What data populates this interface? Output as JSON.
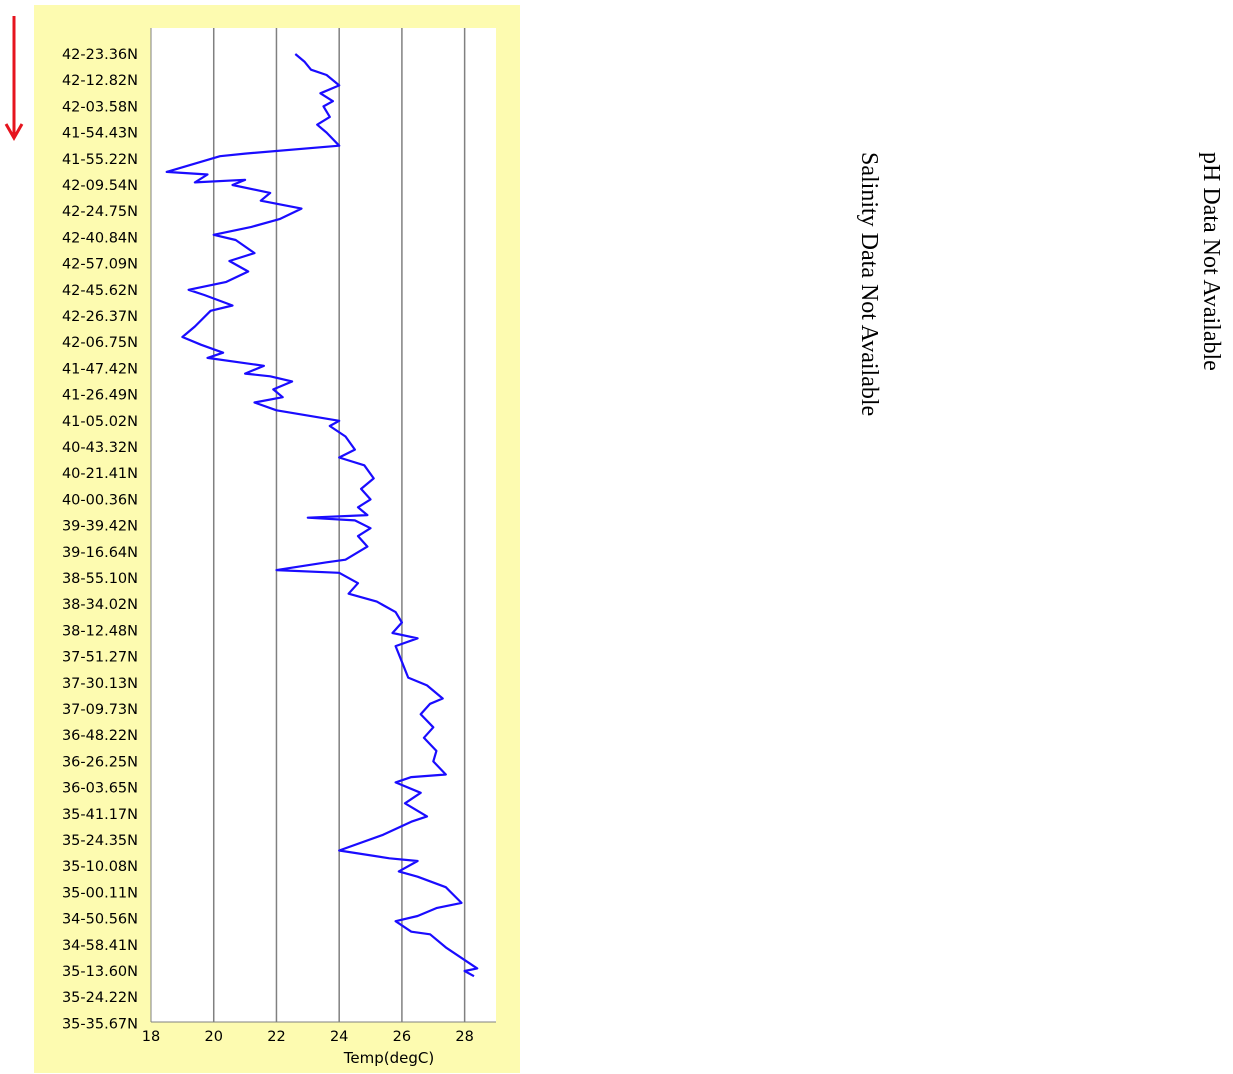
{
  "chart_data": {
    "type": "line",
    "xlabel": "Temp(degC)",
    "xlim": [
      18,
      29
    ],
    "xticks": [
      18,
      20,
      22,
      24,
      26,
      28
    ],
    "grid": "vertical lines at x ticks",
    "y_tick_labels": [
      "42-23.36N",
      "42-12.82N",
      "42-03.58N",
      "41-54.43N",
      "41-55.22N",
      "42-09.54N",
      "42-24.75N",
      "42-40.84N",
      "42-57.09N",
      "42-45.62N",
      "42-26.37N",
      "42-06.75N",
      "41-47.42N",
      "41-26.49N",
      "41-05.02N",
      "40-43.32N",
      "40-21.41N",
      "40-00.36N",
      "39-39.42N",
      "39-16.64N",
      "38-55.10N",
      "38-34.02N",
      "38-12.48N",
      "37-51.27N",
      "37-30.13N",
      "37-09.73N",
      "36-48.22N",
      "36-26.25N",
      "36-03.65N",
      "35-41.17N",
      "35-24.35N",
      "35-10.08N",
      "35-00.11N",
      "34-50.56N",
      "34-58.41N",
      "35-13.60N",
      "35-24.22N",
      "35-35.67N"
    ],
    "series": [
      {
        "color": "#1a0cff",
        "points": [
          [
            22.6,
            0.0
          ],
          [
            22.9,
            0.3
          ],
          [
            23.1,
            0.6
          ],
          [
            23.6,
            0.8
          ],
          [
            24.0,
            1.2
          ],
          [
            23.4,
            1.5
          ],
          [
            23.8,
            1.8
          ],
          [
            23.5,
            2.0
          ],
          [
            23.7,
            2.4
          ],
          [
            23.3,
            2.7
          ],
          [
            23.6,
            3.0
          ],
          [
            24.0,
            3.5
          ],
          [
            21.0,
            3.8
          ],
          [
            20.2,
            3.9
          ],
          [
            18.5,
            4.5
          ],
          [
            19.8,
            4.6
          ],
          [
            19.4,
            4.9
          ],
          [
            21.0,
            4.8
          ],
          [
            20.6,
            5.0
          ],
          [
            21.8,
            5.3
          ],
          [
            21.5,
            5.6
          ],
          [
            22.8,
            5.9
          ],
          [
            22.1,
            6.3
          ],
          [
            21.2,
            6.6
          ],
          [
            20.0,
            6.9
          ],
          [
            20.7,
            7.1
          ],
          [
            21.3,
            7.6
          ],
          [
            20.5,
            7.9
          ],
          [
            21.1,
            8.3
          ],
          [
            20.4,
            8.7
          ],
          [
            19.2,
            9.0
          ],
          [
            19.7,
            9.2
          ],
          [
            20.6,
            9.6
          ],
          [
            19.9,
            9.8
          ],
          [
            19.4,
            10.4
          ],
          [
            19.0,
            10.8
          ],
          [
            19.6,
            11.1
          ],
          [
            20.3,
            11.4
          ],
          [
            19.8,
            11.6
          ],
          [
            21.6,
            11.9
          ],
          [
            21.0,
            12.2
          ],
          [
            21.8,
            12.3
          ],
          [
            22.5,
            12.5
          ],
          [
            21.9,
            12.8
          ],
          [
            22.2,
            13.1
          ],
          [
            21.3,
            13.3
          ],
          [
            22.0,
            13.6
          ],
          [
            24.0,
            14.0
          ],
          [
            23.7,
            14.2
          ],
          [
            24.2,
            14.6
          ],
          [
            24.5,
            15.1
          ],
          [
            24.0,
            15.4
          ],
          [
            24.8,
            15.7
          ],
          [
            25.1,
            16.2
          ],
          [
            24.7,
            16.6
          ],
          [
            25.0,
            17.0
          ],
          [
            24.6,
            17.3
          ],
          [
            24.9,
            17.6
          ],
          [
            23.0,
            17.7
          ],
          [
            24.5,
            17.8
          ],
          [
            25.0,
            18.1
          ],
          [
            24.6,
            18.4
          ],
          [
            24.9,
            18.8
          ],
          [
            24.2,
            19.3
          ],
          [
            23.6,
            19.4
          ],
          [
            22.0,
            19.7
          ],
          [
            24.0,
            19.8
          ],
          [
            24.6,
            20.2
          ],
          [
            24.3,
            20.6
          ],
          [
            25.2,
            20.9
          ],
          [
            25.8,
            21.3
          ],
          [
            26.0,
            21.7
          ],
          [
            25.7,
            22.1
          ],
          [
            26.5,
            22.3
          ],
          [
            25.8,
            22.6
          ],
          [
            26.0,
            23.2
          ],
          [
            26.2,
            23.8
          ],
          [
            26.8,
            24.1
          ],
          [
            27.3,
            24.6
          ],
          [
            26.9,
            24.8
          ],
          [
            26.6,
            25.2
          ],
          [
            27.0,
            25.7
          ],
          [
            26.7,
            26.1
          ],
          [
            27.1,
            26.6
          ],
          [
            27.0,
            27.0
          ],
          [
            27.4,
            27.5
          ],
          [
            26.3,
            27.6
          ],
          [
            25.8,
            27.8
          ],
          [
            26.6,
            28.2
          ],
          [
            26.1,
            28.6
          ],
          [
            26.8,
            29.1
          ],
          [
            26.3,
            29.3
          ],
          [
            25.4,
            29.8
          ],
          [
            24.0,
            30.4
          ],
          [
            25.6,
            30.7
          ],
          [
            26.5,
            30.8
          ],
          [
            25.9,
            31.2
          ],
          [
            26.5,
            31.4
          ],
          [
            27.4,
            31.8
          ],
          [
            27.9,
            32.4
          ],
          [
            27.1,
            32.6
          ],
          [
            26.5,
            32.9
          ],
          [
            25.8,
            33.1
          ],
          [
            26.3,
            33.5
          ],
          [
            26.9,
            33.6
          ],
          [
            27.4,
            34.1
          ],
          [
            27.9,
            34.5
          ],
          [
            28.4,
            34.9
          ],
          [
            28.0,
            35.0
          ],
          [
            28.3,
            35.2
          ]
        ]
      }
    ]
  },
  "messages": {
    "salinity": "Salinity Data Not Available",
    "ph": "pH Data Not Available"
  },
  "direction_arrow": {
    "color": "#e6141e",
    "icon": "down-arrow-icon"
  }
}
